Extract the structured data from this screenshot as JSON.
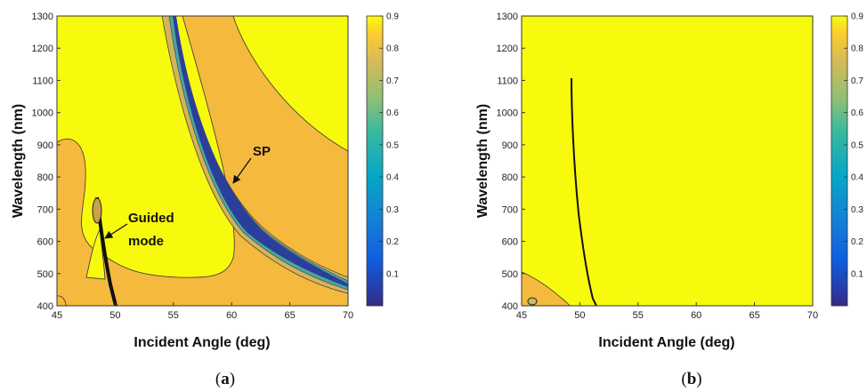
{
  "chart_data": [
    {
      "type": "heatmap",
      "panel_label": "a",
      "xlabel": "Incident Angle (deg)",
      "ylabel": "Wavelength (nm)",
      "xlim": [
        45,
        70
      ],
      "ylim": [
        400,
        1300
      ],
      "xticks": [
        45,
        50,
        55,
        60,
        65,
        70
      ],
      "yticks": [
        400,
        500,
        600,
        700,
        800,
        900,
        1000,
        1100,
        1200,
        1300
      ],
      "colorbar": {
        "range": [
          0,
          0.9
        ],
        "ticks": [
          0.1,
          0.2,
          0.3,
          0.4,
          0.5,
          0.6,
          0.7,
          0.8,
          0.9
        ]
      },
      "colors": {
        "high": "#f8fa0d",
        "mid": "#f5b93e",
        "low": "#3c2a9c"
      },
      "annotations": [
        {
          "text": "SP",
          "x": 61.8,
          "y": 850
        },
        {
          "text": "Guided",
          "x": 51.0,
          "y": 690
        },
        {
          "text": "mode",
          "x": 51.0,
          "y": 625
        }
      ],
      "features": {
        "sp_resonance": {
          "x": [
            55.6,
            56.5,
            57.5,
            58.5,
            59.5,
            61,
            62.5,
            64,
            66,
            68,
            70
          ],
          "y": [
            1300,
            1100,
            960,
            870,
            800,
            730,
            680,
            640,
            590,
            540,
            500
          ]
        },
        "guided_mode": {
          "x": [
            48.6,
            48.9,
            49.4,
            49.8,
            50.2
          ],
          "y": [
            680,
            600,
            520,
            460,
            400
          ]
        }
      }
    },
    {
      "type": "heatmap",
      "panel_label": "b",
      "xlabel": "Incident Angle (deg)",
      "ylabel": "Wavelength (nm)",
      "xlim": [
        45,
        70
      ],
      "ylim": [
        400,
        1300
      ],
      "xticks": [
        45,
        50,
        55,
        60,
        65,
        70
      ],
      "yticks": [
        400,
        500,
        600,
        700,
        800,
        900,
        1000,
        1100,
        1200,
        1300
      ],
      "colorbar": {
        "range": [
          0,
          0.9
        ],
        "ticks": [
          0.1,
          0.2,
          0.3,
          0.4,
          0.5,
          0.6,
          0.7,
          0.8,
          0.9
        ]
      },
      "colors": {
        "high": "#f8fa0d",
        "mid": "#f5b93e",
        "low": "#3c2a9c"
      },
      "features": {
        "guided_mode": {
          "x": [
            49.3,
            49.4,
            49.8,
            50.3,
            50.7,
            51.0
          ],
          "y": [
            1100,
            1000,
            850,
            700,
            550,
            420
          ]
        }
      }
    }
  ]
}
